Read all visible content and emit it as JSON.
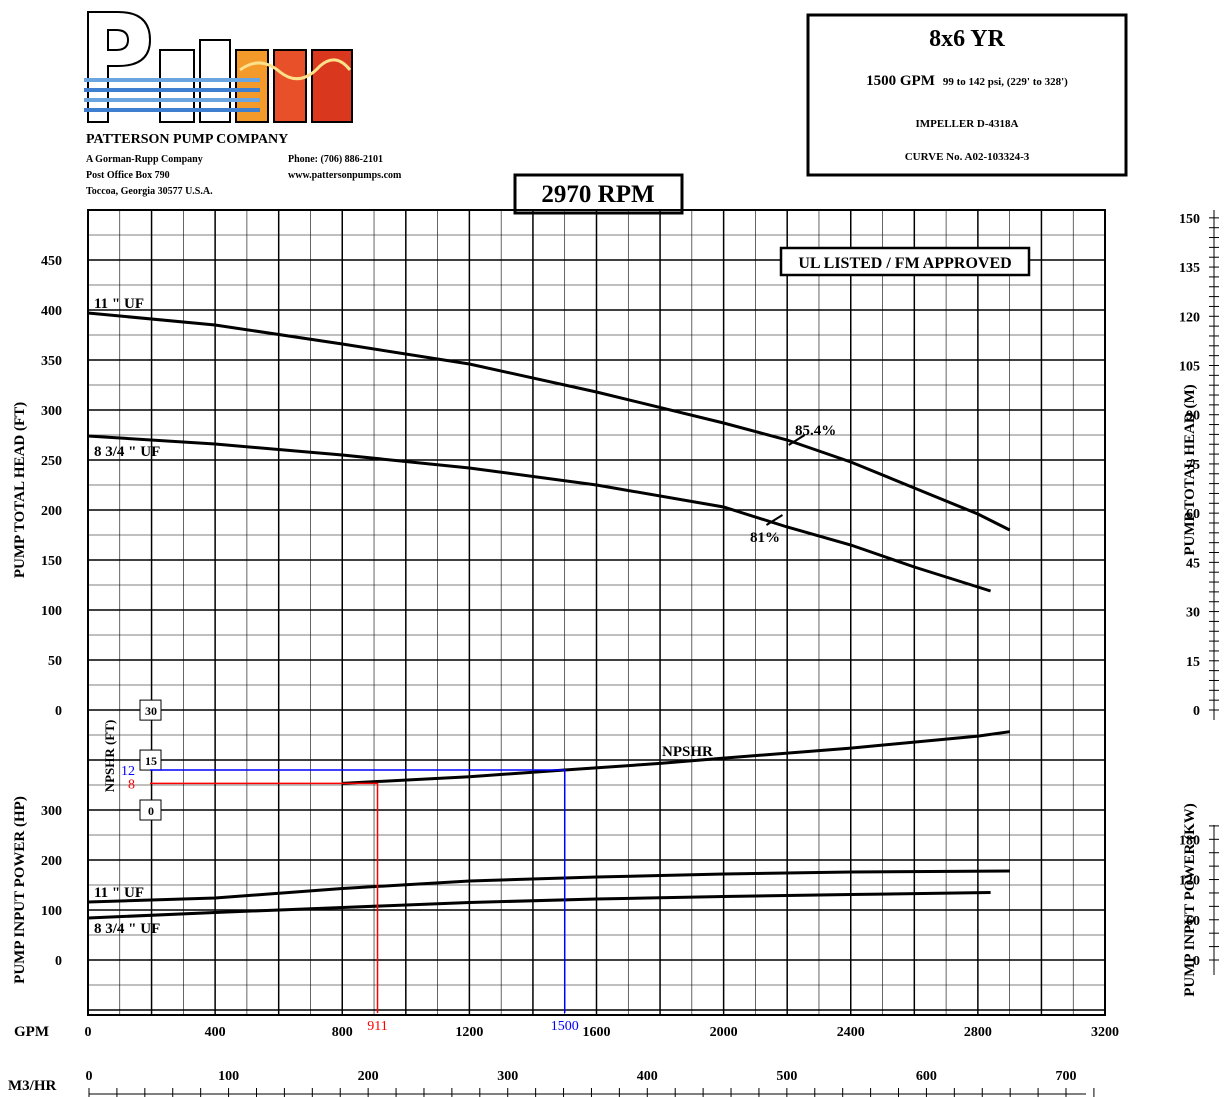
{
  "company": {
    "name": "PATTERSON PUMP COMPANY",
    "sub": "A Gorman-Rupp Company",
    "address1": "Post Office Box 790",
    "address2": "Toccoa, Georgia 30577  U.S.A.",
    "phone": "Phone: (706) 886-2101",
    "web": "www.pattersonpumps.com",
    "logo_text": "Patterson"
  },
  "infobox": {
    "model": "8x6  YR",
    "rating_main": "1500 GPM",
    "rating_detail": "99 to 142 psi, (229' to 328')",
    "impeller": "IMPELLER  D-4318A",
    "curve_no": "CURVE No.  A02-103324-3"
  },
  "rpm": "2970  RPM",
  "approval": "UL LISTED / FM APPROVED",
  "colors": {
    "grid": "#000000",
    "curve": "#000000",
    "marker_blue": "#0000ff",
    "marker_red": "#ff0000"
  },
  "chart_data": {
    "type": "line",
    "title": "2970  RPM",
    "x": {
      "label": "GPM",
      "range": [
        0,
        3200
      ],
      "ticks": [
        "0",
        "400",
        "800",
        "1200",
        "1600",
        "2000",
        "2400",
        "2800",
        "3200"
      ],
      "secondary_label": "M3/HR",
      "secondary_ticks": [
        "0",
        "100",
        "200",
        "300",
        "400",
        "500",
        "600",
        "700"
      ]
    },
    "head": {
      "ylabel": "PUMP TOTAL HEAD (FT)",
      "ylim": [
        0,
        500
      ],
      "ticks": [
        "0",
        "50",
        "100",
        "150",
        "200",
        "250",
        "300",
        "350",
        "400",
        "450"
      ],
      "ylabel_right": "PUMP TOTAL HEAD (M)",
      "ticks_right": [
        "0",
        "15",
        "30",
        "45",
        "60",
        "75",
        "90",
        "105",
        "120",
        "135",
        "150"
      ],
      "series": [
        {
          "name": "11 \" UF",
          "points": [
            [
              0,
              397
            ],
            [
              400,
              385
            ],
            [
              800,
              366
            ],
            [
              1200,
              346
            ],
            [
              1600,
              318
            ],
            [
              2000,
              287
            ],
            [
              2200,
              270
            ],
            [
              2400,
              248
            ],
            [
              2600,
              222
            ],
            [
              2800,
              196
            ],
            [
              2900,
              180
            ]
          ]
        },
        {
          "name": "8 3/4 \" UF",
          "points": [
            [
              0,
              274
            ],
            [
              400,
              266
            ],
            [
              800,
              255
            ],
            [
              1200,
              242
            ],
            [
              1600,
              225
            ],
            [
              2000,
              203
            ],
            [
              2200,
              183
            ],
            [
              2400,
              165
            ],
            [
              2600,
              143
            ],
            [
              2840,
              119
            ]
          ]
        }
      ],
      "annotations": [
        {
          "text": "85.4%",
          "x": 2230,
          "y": 270
        },
        {
          "text": "81%",
          "x": 2160,
          "y": 190
        }
      ]
    },
    "npshr": {
      "ylabel": "NPSHR (FT)",
      "ticks": [
        "0",
        "15",
        "30"
      ],
      "series": [
        {
          "name": "NPSHR",
          "points": [
            [
              800,
              8
            ],
            [
              1200,
              10
            ],
            [
              1500,
              12
            ],
            [
              1800,
              14
            ],
            [
              2000,
              15.6
            ],
            [
              2400,
              18.6
            ],
            [
              2800,
              22.2
            ],
            [
              2900,
              23.5
            ]
          ]
        }
      ]
    },
    "power": {
      "ylabel": "PUMP INPUT POWER (HP)",
      "ticks": [
        "0",
        "100",
        "200",
        "300"
      ],
      "ylabel_right": "PUMP INPUT POWER (KW)",
      "ticks_right": [
        "0",
        "60",
        "120",
        "180"
      ],
      "series": [
        {
          "name": "11 \" UF",
          "points": [
            [
              0,
              116
            ],
            [
              400,
              124
            ],
            [
              800,
              143
            ],
            [
              1200,
              158
            ],
            [
              1600,
              166
            ],
            [
              2000,
              172
            ],
            [
              2400,
              176
            ],
            [
              2900,
              178
            ]
          ]
        },
        {
          "name": "8 3/4 \" UF",
          "points": [
            [
              0,
              84
            ],
            [
              400,
              95
            ],
            [
              800,
              105
            ],
            [
              1200,
              115
            ],
            [
              1600,
              122
            ],
            [
              2000,
              127
            ],
            [
              2400,
              131
            ],
            [
              2840,
              135
            ]
          ]
        }
      ]
    },
    "markers": [
      {
        "gpm": "1500",
        "npshr": "12",
        "gpm_value": 1500,
        "npshr_value": 12,
        "color": "#0000ff"
      },
      {
        "gpm": "911",
        "npshr": "8",
        "gpm_value": 911,
        "npshr_value": 8,
        "color": "#ff0000"
      }
    ],
    "grid": true
  }
}
